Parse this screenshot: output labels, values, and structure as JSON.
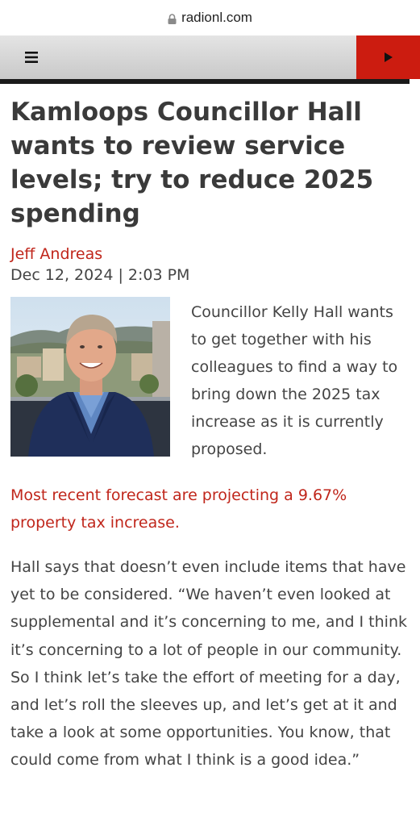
{
  "browser": {
    "url": "radionl.com"
  },
  "nav": {
    "menu_icon": "≡",
    "play_icon": "play-icon"
  },
  "article": {
    "title": "Kamloops Councillor Hall wants to review service levels; try to reduce 2025 spending",
    "author": "Jeff Andreas",
    "dateline": "Dec 12, 2024 | 2:03 PM",
    "intro": "Councillor Kelly Hall wants to get together with his colleagues to find a way to bring down the 2025 tax increase as it is currently proposed.",
    "highlight": "Most recent forecast are projecting a 9.67% property tax increase.",
    "body": "Hall says that doesn’t even include items that have yet to be considered. “We haven’t even looked at supplemental and it’s concerning to me, and I think it’s concerning to a lot of people in our community. So I think let’s take the effort of meeting for a day, and let’s roll the sleeves up, and let’s get at it and take a look at some opportunities. You know, that could come from what I think is a good idea.”"
  },
  "colors": {
    "accent_red": "#c0261b",
    "play_button": "#cc1c10",
    "nav_bg": "#d6d6d6",
    "text": "#444444"
  }
}
